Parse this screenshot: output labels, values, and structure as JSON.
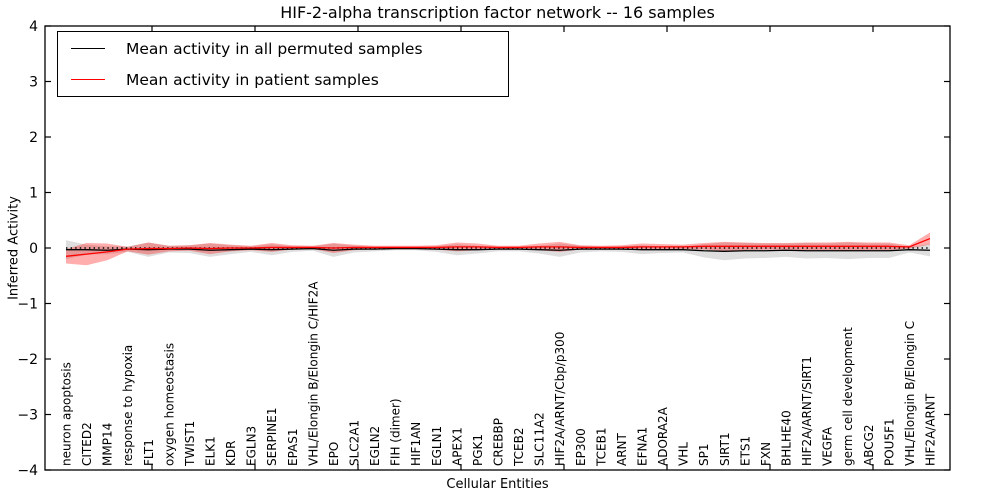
{
  "figure": {
    "title": "HIF-2-alpha transcription factor network -- 16 samples",
    "xlabel": "Cellular Entities",
    "ylabel": "Inferred Activity"
  },
  "chart_data": {
    "type": "line",
    "title": "HIF-2-alpha transcription factor network -- 16 samples",
    "xlabel": "Cellular Entities",
    "ylabel": "Inferred Activity",
    "ylim": [
      -4,
      4
    ],
    "yticks": [
      -4,
      -3,
      -2,
      -1,
      0,
      1,
      2,
      3,
      4
    ],
    "grid": false,
    "legend_position": "upper left",
    "reference_line": {
      "y": 0,
      "style": "dotted",
      "color": "#000000"
    },
    "categories": [
      "neuron apoptosis",
      "CITED2",
      "MMP14",
      "response to hypoxia",
      "FLT1",
      "oxygen homeostasis",
      "TWIST1",
      "ELK1",
      "KDR",
      "EGLN3",
      "SERPINE1",
      "EPAS1",
      "VHL/Elongin B/Elongin C/HIF2A",
      "EPO",
      "SLC2A1",
      "EGLN2",
      "FIH (dimer)",
      "HIF1AN",
      "EGLN1",
      "APEX1",
      "PGK1",
      "CREBBP",
      "TCEB2",
      "SLC11A2",
      "HIF2A/ARNT/Cbp/p300",
      "EP300",
      "TCEB1",
      "ARNT",
      "EFNA1",
      "ADORA2A",
      "VHL",
      "SP1",
      "SIRT1",
      "ETS1",
      "FXN",
      "BHLHE40",
      "HIF2A/ARNT/SIRT1",
      "VEGFA",
      "germ cell development",
      "ABCG2",
      "POU5F1",
      "VHL/Elongin B/Elongin C",
      "HIF2A/ARNT"
    ],
    "series": [
      {
        "name": "Mean activity in all permuted samples",
        "color": "#000000",
        "band_color": "rgba(0,0,0,0.13)",
        "values": [
          -0.03,
          -0.03,
          -0.04,
          -0.02,
          -0.03,
          -0.02,
          -0.02,
          -0.04,
          -0.03,
          -0.02,
          -0.03,
          -0.02,
          -0.01,
          -0.04,
          -0.02,
          -0.02,
          -0.01,
          -0.01,
          -0.02,
          -0.03,
          -0.03,
          -0.02,
          -0.02,
          -0.03,
          -0.04,
          -0.02,
          -0.02,
          -0.02,
          -0.03,
          -0.03,
          -0.03,
          -0.05,
          -0.06,
          -0.05,
          -0.05,
          -0.04,
          -0.05,
          -0.05,
          -0.05,
          -0.05,
          -0.05,
          -0.03,
          -0.04
        ],
        "band_halfwidth": [
          0.17,
          0.09,
          0.07,
          0.05,
          0.13,
          0.06,
          0.07,
          0.12,
          0.08,
          0.05,
          0.1,
          0.05,
          0.04,
          0.12,
          0.06,
          0.04,
          0.03,
          0.03,
          0.05,
          0.1,
          0.07,
          0.04,
          0.04,
          0.07,
          0.12,
          0.06,
          0.04,
          0.05,
          0.08,
          0.06,
          0.05,
          0.12,
          0.16,
          0.14,
          0.13,
          0.12,
          0.14,
          0.13,
          0.15,
          0.13,
          0.13,
          0.05,
          0.11
        ]
      },
      {
        "name": "Mean activity in patient samples",
        "color": "#ff0000",
        "band_color": "rgba(255,0,0,0.32)",
        "values": [
          -0.15,
          -0.11,
          -0.07,
          -0.02,
          -0.01,
          -0.01,
          0.0,
          -0.01,
          0.0,
          0.0,
          0.01,
          0.01,
          0.01,
          0.0,
          0.01,
          0.01,
          0.01,
          0.01,
          0.01,
          0.02,
          0.02,
          0.01,
          0.01,
          0.02,
          0.02,
          0.01,
          0.01,
          0.01,
          0.02,
          0.02,
          0.02,
          0.03,
          0.03,
          0.03,
          0.03,
          0.03,
          0.03,
          0.03,
          0.03,
          0.03,
          0.03,
          0.02,
          0.17
        ],
        "band_halfwidth": [
          0.13,
          0.2,
          0.15,
          0.04,
          0.11,
          0.05,
          0.05,
          0.1,
          0.06,
          0.04,
          0.08,
          0.04,
          0.03,
          0.09,
          0.05,
          0.03,
          0.03,
          0.03,
          0.04,
          0.08,
          0.06,
          0.03,
          0.03,
          0.06,
          0.09,
          0.04,
          0.03,
          0.04,
          0.06,
          0.05,
          0.04,
          0.06,
          0.08,
          0.07,
          0.06,
          0.06,
          0.07,
          0.07,
          0.08,
          0.07,
          0.07,
          0.03,
          0.11
        ]
      }
    ]
  }
}
